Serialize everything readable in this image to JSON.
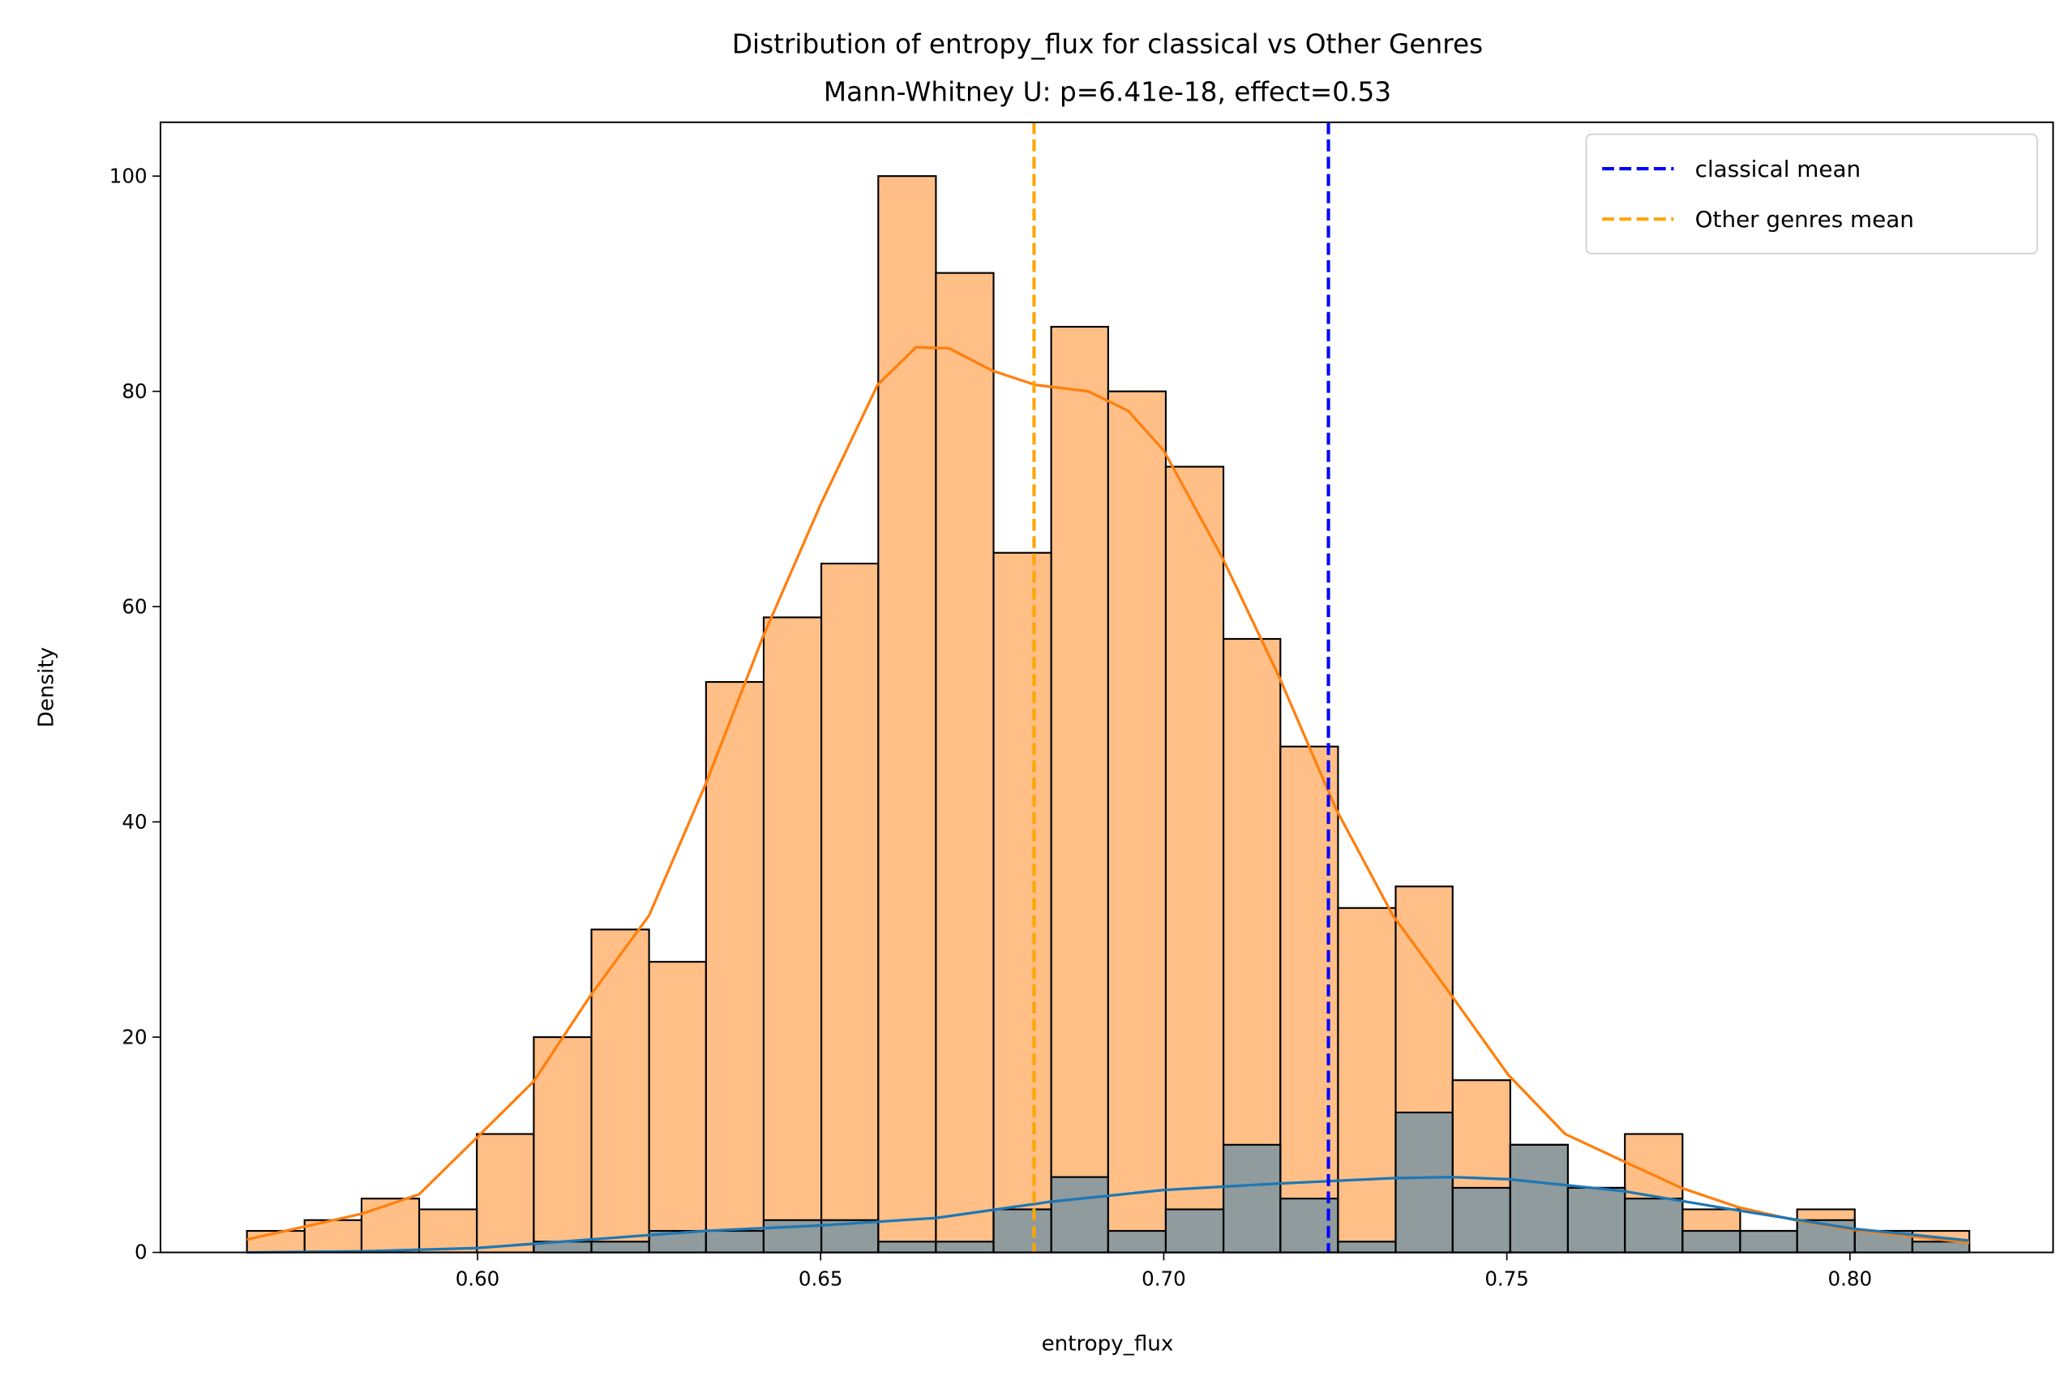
{
  "chart_data": {
    "type": "histogram",
    "title": "Distribution of entropy_flux for classical vs Other Genres",
    "subtitle": "Mann-Whitney U: p=6.41e-18, effect=0.53",
    "x_label": "entropy_flux",
    "y_label": "Density",
    "xlim": [
      0.5538,
      0.8296
    ],
    "ylim": [
      0,
      105
    ],
    "xticks": [
      {
        "value": 0.6,
        "label": "0.60"
      },
      {
        "value": 0.65,
        "label": "0.65"
      },
      {
        "value": 0.7,
        "label": "0.70"
      },
      {
        "value": 0.75,
        "label": "0.75"
      },
      {
        "value": 0.8,
        "label": "0.80"
      }
    ],
    "yticks": [
      0,
      20,
      40,
      60,
      80,
      100
    ],
    "bins": [
      0.5664,
      0.5748,
      0.5831,
      0.5915,
      0.5999,
      0.6082,
      0.6166,
      0.625,
      0.6333,
      0.6417,
      0.6501,
      0.6584,
      0.6668,
      0.6752,
      0.6836,
      0.6919,
      0.7003,
      0.7087,
      0.717,
      0.7254,
      0.7338,
      0.7421,
      0.7505,
      0.7589,
      0.7672,
      0.7756,
      0.784,
      0.7923,
      0.8007,
      0.8091,
      0.8174
    ],
    "series": [
      {
        "color": "#ff7f0e",
        "values": [
          2,
          3,
          5,
          4,
          11,
          20,
          30,
          27,
          53,
          59,
          64,
          100,
          91,
          65,
          86,
          80,
          73,
          57,
          47,
          32,
          34,
          16,
          10,
          6,
          11,
          4,
          2,
          4,
          2,
          2
        ],
        "kde": {
          "x": [
            0.5664,
            0.5832,
            0.5915,
            0.5998,
            0.6082,
            0.6165,
            0.625,
            0.6333,
            0.6416,
            0.65,
            0.6583,
            0.6639,
            0.6687,
            0.6751,
            0.6813,
            0.689,
            0.6948,
            0.7,
            0.7085,
            0.7168,
            0.7251,
            0.7334,
            0.7419,
            0.7502,
            0.7585,
            0.7669,
            0.7754,
            0.7837,
            0.792,
            0.8005,
            0.8088,
            0.8174
          ],
          "y": [
            1.2,
            3.6,
            5.4,
            10.6,
            15.9,
            23.9,
            31.3,
            43.6,
            57.2,
            69.5,
            80.6,
            84.1,
            84,
            81.9,
            80.6,
            80,
            78.2,
            74.5,
            64.6,
            53.5,
            41.2,
            31.3,
            23.9,
            16.5,
            11,
            8.5,
            6,
            4.2,
            3,
            2.1,
            1.5,
            0.9
          ]
        }
      },
      {
        "color": "#1f77b4",
        "values": [
          0,
          0,
          0,
          0,
          0,
          1,
          1,
          2,
          2,
          3,
          3,
          1,
          1,
          4,
          7,
          2,
          4,
          10,
          5,
          1,
          13,
          6,
          10,
          6,
          5,
          2,
          2,
          3,
          2,
          1
        ],
        "kde": {
          "x": [
            0.5664,
            0.5832,
            0.5998,
            0.6165,
            0.6333,
            0.65,
            0.6668,
            0.6834,
            0.7,
            0.7168,
            0.7334,
            0.7419,
            0.7502,
            0.7669,
            0.7837,
            0.8005,
            0.8174
          ],
          "y": [
            0,
            0.1,
            0.4,
            1.2,
            2,
            2.5,
            3.2,
            4.7,
            5.8,
            6.4,
            6.9,
            7.0,
            6.8,
            5.7,
            3.9,
            2.2,
            1.1
          ]
        }
      }
    ],
    "mean_lines": [
      {
        "label": "classical mean",
        "x": 0.724,
        "color": "blue"
      },
      {
        "label": "Other genres mean",
        "x": 0.6811,
        "color": "orange"
      }
    ],
    "legend": "upper right"
  }
}
